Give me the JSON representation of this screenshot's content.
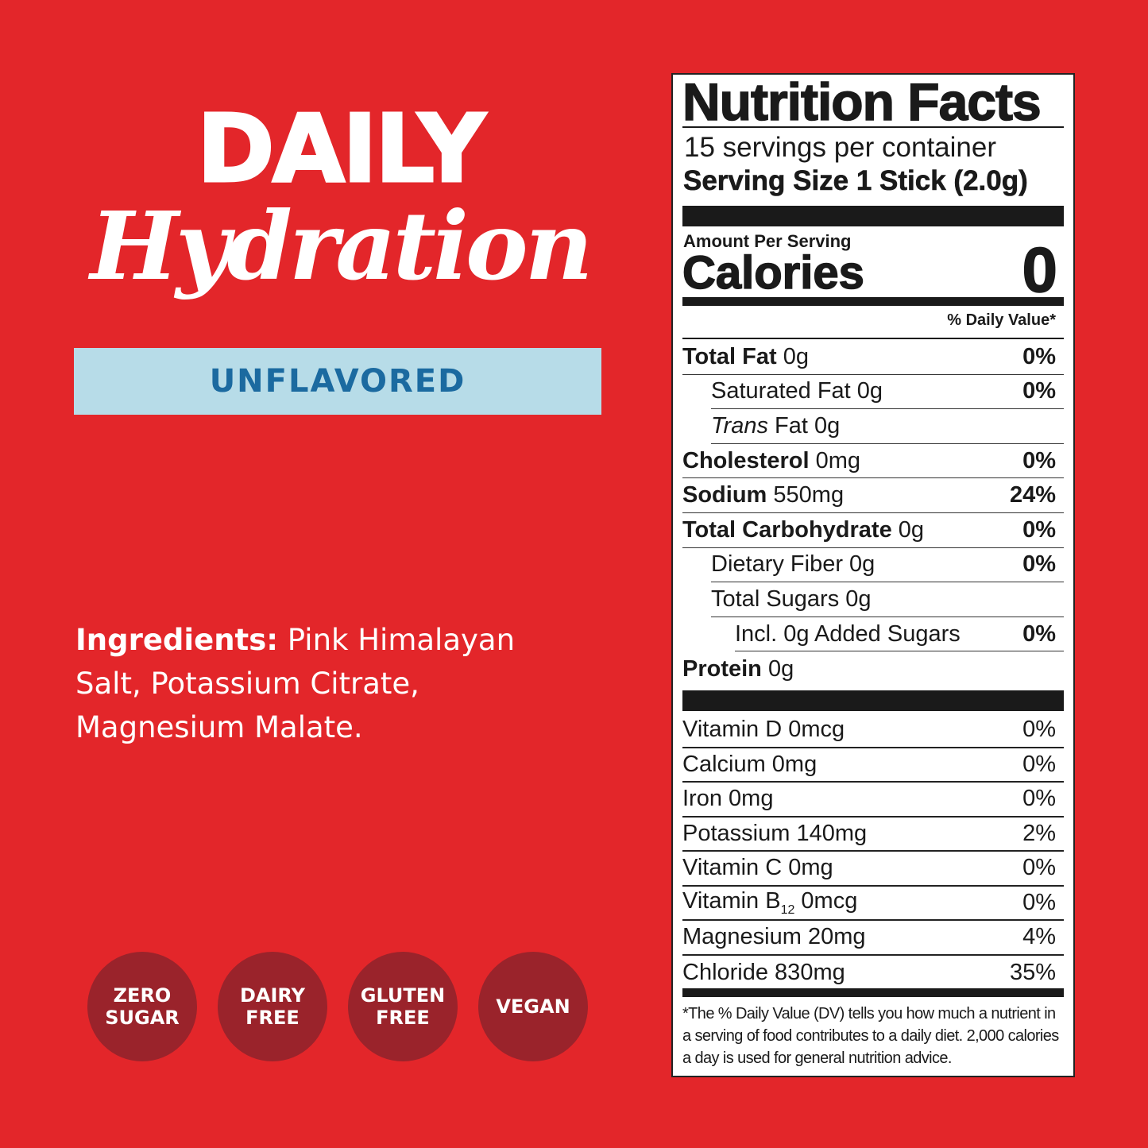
{
  "brand": {
    "line1": "DAILY",
    "line2": "Hydration",
    "flavor": "UNFLAVORED"
  },
  "ingredients": {
    "label": "Ingredients:",
    "text": " Pink Himalayan Salt, Potassium Citrate, Magnesium Malate."
  },
  "badges": [
    "ZERO\nSUGAR",
    "DAIRY\nFREE",
    "GLUTEN\nFREE",
    "VEGAN"
  ],
  "colors": {
    "background": "#e3262a",
    "badge": "#9a232b",
    "banner": "#b7dce8",
    "banner_text": "#1b6aa0"
  },
  "nutrition": {
    "title": "Nutrition Facts",
    "servings": "15 servings per container",
    "serving_size": "Serving Size 1 Stick (2.0g)",
    "amount_per_serving": "Amount Per Serving",
    "calories_label": "Calories",
    "calories_value": "0",
    "dv_header": "% Daily Value*",
    "rows": [
      {
        "name": "Total Fat",
        "amount": " 0g",
        "dv": "0%",
        "bold": true,
        "indent": 0
      },
      {
        "name": "Saturated Fat",
        "amount": " 0g",
        "dv": "0%",
        "bold": false,
        "indent": 1
      },
      {
        "name": "Trans",
        "amount": " Fat 0g",
        "dv": "",
        "bold": false,
        "indent": 1,
        "italic": true
      },
      {
        "name": "Cholesterol",
        "amount": " 0mg",
        "dv": "0%",
        "bold": true,
        "indent": 0
      },
      {
        "name": "Sodium",
        "amount": " 550mg",
        "dv": "24%",
        "bold": true,
        "indent": 0
      },
      {
        "name": "Total Carbohydrate",
        "amount": " 0g",
        "dv": "0%",
        "bold": true,
        "indent": 0
      },
      {
        "name": "Dietary Fiber",
        "amount": " 0g",
        "dv": "0%",
        "bold": false,
        "indent": 1
      },
      {
        "name": "Total Sugars",
        "amount": " 0g",
        "dv": "",
        "bold": false,
        "indent": 1
      },
      {
        "name": "Incl. 0g Added Sugars",
        "amount": "",
        "dv": "0%",
        "bold": false,
        "indent": 2
      },
      {
        "name": "Protein",
        "amount": " 0g",
        "dv": "",
        "bold": true,
        "indent": 0
      }
    ],
    "vitamins": [
      {
        "name": "Vitamin D 0mcg",
        "dv": "0%"
      },
      {
        "name": "Calcium 0mg",
        "dv": "0%"
      },
      {
        "name": "Iron 0mg",
        "dv": "0%"
      },
      {
        "name": "Potassium 140mg",
        "dv": "2%"
      },
      {
        "name": "Vitamin C 0mg",
        "dv": "0%"
      },
      {
        "name": "Vitamin B",
        "sub": "12",
        "after": " 0mcg",
        "dv": "0%"
      },
      {
        "name": "Magnesium 20mg",
        "dv": "4%"
      },
      {
        "name": "Chloride 830mg",
        "dv": "35%"
      }
    ],
    "footnote": "*The % Daily Value (DV) tells you how much a nutrient in a serving of food contributes to a daily diet. 2,000 calories a day is used for general nutrition advice."
  }
}
